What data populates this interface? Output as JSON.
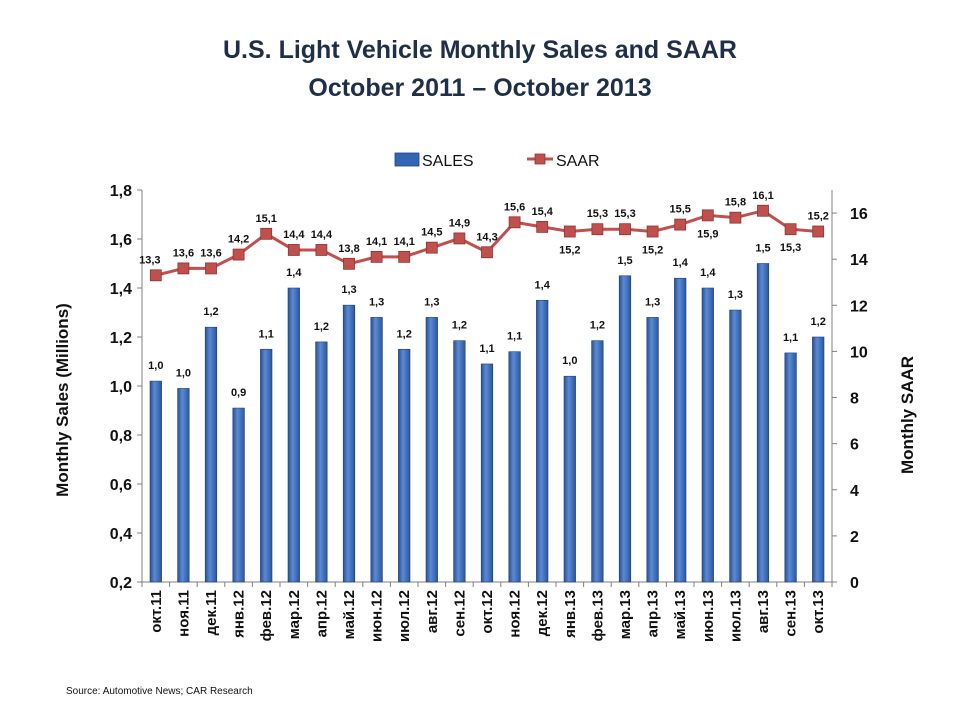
{
  "chart_data": {
    "type": "bar",
    "title": "U.S. Light Vehicle Monthly Sales and SAAR",
    "subtitle": "October 2011 – October 2013",
    "categories": [
      "окт.11",
      "ноя.11",
      "дек.11",
      "янв.12",
      "фев.12",
      "мар.12",
      "апр.12",
      "май.12",
      "июн.12",
      "июл.12",
      "авг.12",
      "сен.12",
      "окт.12",
      "ноя.12",
      "дек.12",
      "янв.13",
      "фев.13",
      "мар.13",
      "апр.13",
      "май.13",
      "июн.13",
      "июл.13",
      "авг.13",
      "сен.13",
      "окт.13"
    ],
    "series": [
      {
        "name": "SALES",
        "type": "bar",
        "axis": "left",
        "color": "#3465b4",
        "values": [
          1.02,
          0.99,
          1.24,
          0.91,
          1.15,
          1.4,
          1.18,
          1.33,
          1.28,
          1.15,
          1.28,
          1.185,
          1.09,
          1.14,
          1.35,
          1.04,
          1.185,
          1.45,
          1.28,
          1.44,
          1.4,
          1.31,
          1.5,
          1.135,
          1.2
        ],
        "labels": [
          "1,0",
          "1,0",
          "1,2",
          "0,9",
          "1,1",
          "1,4",
          "1,2",
          "1,3",
          "1,3",
          "1,2",
          "1,3",
          "1,2",
          "1,1",
          "1,1",
          "1,4",
          "1,0",
          "1,2",
          "1,5",
          "1,3",
          "1,4",
          "1,4",
          "1,3",
          "1,5",
          "1,1",
          "1,2"
        ]
      },
      {
        "name": "SAAR",
        "type": "line",
        "axis": "right",
        "color": "#c0504d",
        "values": [
          13.3,
          13.6,
          13.6,
          14.2,
          15.1,
          14.4,
          14.4,
          13.8,
          14.1,
          14.1,
          14.5,
          14.9,
          14.3,
          15.6,
          15.4,
          15.2,
          15.3,
          15.3,
          15.2,
          15.5,
          15.9,
          15.8,
          16.1,
          15.3,
          15.2
        ],
        "labels": [
          "13,3",
          "13,6",
          "13,6",
          "14,2",
          "15,1",
          "14,4",
          "14,4",
          "13,8",
          "14,1",
          "14,1",
          "14,5",
          "14,9",
          "14,3",
          "15,6",
          "15,4",
          "15,2",
          "15,3",
          "15,3",
          "15,2",
          "15,5",
          "15,9",
          "15,8",
          "16,1",
          "15,3",
          "15,2"
        ]
      }
    ],
    "ylabel": "Monthly Sales (Millions)",
    "y2label": "Monthly SAAR",
    "ylim": [
      0.2,
      1.8
    ],
    "y2lim": [
      0,
      17
    ],
    "yticks": [
      0.2,
      0.4,
      0.6,
      0.8,
      1.0,
      1.2,
      1.4,
      1.6,
      1.8
    ],
    "ytick_labels": [
      "0,2",
      "0,4",
      "0,6",
      "0,8",
      "1,0",
      "1,2",
      "1,4",
      "1,6",
      "1,8"
    ],
    "y2ticks": [
      0,
      2,
      4,
      6,
      8,
      10,
      12,
      14,
      16
    ],
    "y2tick_labels": [
      "0",
      "2",
      "4",
      "6",
      "8",
      "10",
      "12",
      "14",
      "16"
    ],
    "legend": "top-center",
    "grid": false,
    "source": "Source: Automotive News; CAR Research"
  }
}
